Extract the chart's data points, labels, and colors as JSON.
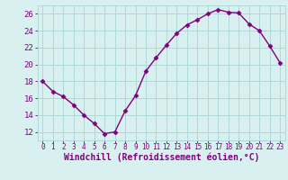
{
  "x": [
    0,
    1,
    2,
    3,
    4,
    5,
    6,
    7,
    8,
    9,
    10,
    11,
    12,
    13,
    14,
    15,
    16,
    17,
    18,
    19,
    20,
    21,
    22,
    23
  ],
  "y": [
    18,
    16.8,
    16.2,
    15.2,
    14.0,
    13.0,
    11.8,
    12.0,
    14.5,
    16.3,
    19.2,
    20.8,
    22.3,
    23.7,
    24.7,
    25.3,
    26.0,
    26.5,
    26.2,
    26.1,
    24.8,
    24.0,
    22.2,
    20.2
  ],
  "line_color": "#800080",
  "marker": "D",
  "markersize": 2.5,
  "bg_color": "#d8f0f0",
  "grid_color": "#b0d8d8",
  "xlabel": "Windchill (Refroidissement éolien,°C)",
  "xlabel_color": "#800080",
  "xlim": [
    -0.5,
    23.5
  ],
  "ylim": [
    11,
    27
  ],
  "yticks": [
    12,
    14,
    16,
    18,
    20,
    22,
    24,
    26
  ],
  "xticks": [
    0,
    1,
    2,
    3,
    4,
    5,
    6,
    7,
    8,
    9,
    10,
    11,
    12,
    13,
    14,
    15,
    16,
    17,
    18,
    19,
    20,
    21,
    22,
    23
  ],
  "tick_color": "#800080",
  "ytick_labelsize": 6.5,
  "xtick_labelsize": 5.5,
  "xlabel_fontsize": 7,
  "linewidth": 1.0
}
